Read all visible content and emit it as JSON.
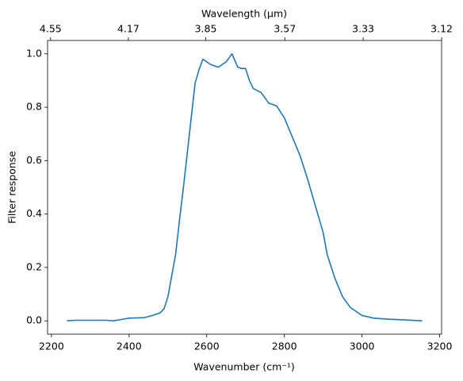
{
  "chart_data": {
    "type": "line",
    "xlabel": "Wavenumber (cm⁻¹)",
    "ylabel": "Filter response",
    "x2label": "Wavelength (μm)",
    "x2scale": "reciprocal",
    "x2factor": 10000,
    "x2ticks": [
      4.55,
      4.17,
      3.85,
      3.57,
      3.33,
      3.12
    ],
    "xlim": [
      2190,
      3205
    ],
    "xticks": [
      2200,
      2400,
      2600,
      2800,
      3000,
      3200
    ],
    "ylim": [
      -0.05,
      1.05
    ],
    "yticks": [
      {
        "value": 0,
        "label": "0.0"
      },
      {
        "value": 0.2,
        "label": "0.2"
      },
      {
        "value": 0.4,
        "label": "0.4"
      },
      {
        "value": 0.6,
        "label": "0.6"
      },
      {
        "value": 0.8,
        "label": "0.8"
      },
      {
        "value": 1,
        "label": "1.0"
      }
    ],
    "grid": false,
    "series": [
      {
        "color": "#1f77b4",
        "x": [
          2240,
          2260,
          2300,
          2340,
          2360,
          2380,
          2400,
          2440,
          2460,
          2480,
          2490,
          2500,
          2510,
          2520,
          2530,
          2540,
          2550,
          2560,
          2570,
          2580,
          2590,
          2600,
          2610,
          2630,
          2650,
          2665,
          2680,
          2690,
          2700,
          2710,
          2720,
          2740,
          2760,
          2780,
          2800,
          2820,
          2840,
          2860,
          2880,
          2900,
          2910,
          2930,
          2950,
          2970,
          3000,
          3030,
          3070,
          3100,
          3155
        ],
        "values": [
          0.0,
          0.002,
          0.002,
          0.002,
          0.0,
          0.005,
          0.01,
          0.012,
          0.02,
          0.03,
          0.045,
          0.09,
          0.17,
          0.25,
          0.38,
          0.5,
          0.63,
          0.76,
          0.89,
          0.94,
          0.98,
          0.97,
          0.96,
          0.95,
          0.97,
          1.0,
          0.95,
          0.945,
          0.945,
          0.9,
          0.87,
          0.855,
          0.815,
          0.805,
          0.76,
          0.69,
          0.62,
          0.53,
          0.43,
          0.33,
          0.25,
          0.16,
          0.09,
          0.05,
          0.02,
          0.01,
          0.006,
          0.004,
          0.0
        ]
      }
    ]
  }
}
